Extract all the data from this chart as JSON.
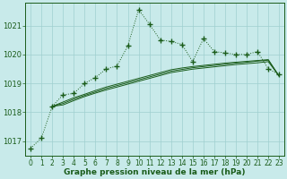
{
  "background_color": "#c8eaea",
  "plot_bg_color": "#c8eaea",
  "grid_color": "#9fcfcf",
  "line_color": "#1a5c1a",
  "xlabel": "Graphe pression niveau de la mer (hPa)",
  "ylim": [
    1016.5,
    1021.8
  ],
  "xlim": [
    -0.5,
    23.5
  ],
  "yticks": [
    1017,
    1018,
    1019,
    1020,
    1021
  ],
  "xticks": [
    0,
    1,
    2,
    3,
    4,
    5,
    6,
    7,
    8,
    9,
    10,
    11,
    12,
    13,
    14,
    15,
    16,
    17,
    18,
    19,
    20,
    21,
    22,
    23
  ],
  "main_series_x": [
    0,
    1,
    2,
    3,
    4,
    5,
    6,
    7,
    8,
    9,
    10,
    11,
    12,
    13,
    14,
    15,
    16,
    17,
    18,
    19,
    20,
    21,
    22,
    23
  ],
  "main_series_y": [
    1016.75,
    1017.1,
    1018.2,
    1018.6,
    1018.65,
    1019.0,
    1019.2,
    1019.5,
    1019.6,
    1020.3,
    1021.55,
    1021.05,
    1020.5,
    1020.45,
    1020.35,
    1019.75,
    1020.55,
    1020.1,
    1020.05,
    1020.0,
    1020.0,
    1020.1,
    1019.5,
    1019.3
  ],
  "smooth1_x": [
    2,
    3,
    4,
    5,
    6,
    7,
    8,
    9,
    10,
    11,
    12,
    13,
    14,
    15,
    16,
    17,
    18,
    19,
    20,
    21,
    22,
    23
  ],
  "smooth1_y": [
    1018.2,
    1018.35,
    1018.5,
    1018.62,
    1018.75,
    1018.87,
    1018.97,
    1019.07,
    1019.17,
    1019.27,
    1019.37,
    1019.47,
    1019.53,
    1019.58,
    1019.62,
    1019.66,
    1019.7,
    1019.73,
    1019.76,
    1019.79,
    1019.82,
    1019.25
  ],
  "smooth2_x": [
    2,
    3,
    4,
    5,
    6,
    7,
    8,
    9,
    10,
    11,
    12,
    13,
    14,
    15,
    16,
    17,
    18,
    19,
    20,
    21,
    22,
    23
  ],
  "smooth2_y": [
    1018.2,
    1018.3,
    1018.45,
    1018.58,
    1018.7,
    1018.82,
    1018.92,
    1019.02,
    1019.12,
    1019.22,
    1019.32,
    1019.42,
    1019.48,
    1019.54,
    1019.58,
    1019.62,
    1019.66,
    1019.7,
    1019.73,
    1019.77,
    1019.8,
    1019.25
  ],
  "smooth3_x": [
    2,
    3,
    4,
    5,
    6,
    7,
    8,
    9,
    10,
    11,
    12,
    13,
    14,
    15,
    16,
    17,
    18,
    19,
    20,
    21,
    22,
    23
  ],
  "smooth3_y": [
    1018.2,
    1018.25,
    1018.4,
    1018.54,
    1018.66,
    1018.77,
    1018.87,
    1018.97,
    1019.07,
    1019.17,
    1019.27,
    1019.37,
    1019.43,
    1019.49,
    1019.53,
    1019.57,
    1019.61,
    1019.65,
    1019.68,
    1019.71,
    1019.75,
    1019.25
  ]
}
